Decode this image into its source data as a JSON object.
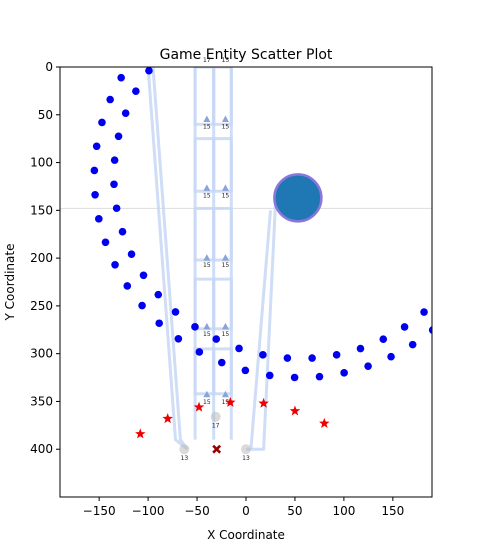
{
  "chart_data": {
    "type": "scatter",
    "title": "Game Entity Scatter Plot",
    "xlabel": "X Coordinate",
    "ylabel": "Y Coordinate",
    "xlim": [
      -190,
      190
    ],
    "ylim": [
      450,
      0
    ],
    "y_inverted": true,
    "x_ticks": [
      -150,
      -100,
      -50,
      0,
      50,
      100,
      150
    ],
    "y_ticks": [
      0,
      50,
      100,
      150,
      200,
      250,
      300,
      350,
      400
    ],
    "grid": false,
    "reference_line_y": 148,
    "colors": {
      "blue_dot": "#0000ee",
      "large_circle_fill": "#1f77b4",
      "large_circle_edge": "#8877dd",
      "star": "#ee0000",
      "cross": "#990000",
      "path": "#c7d7f5",
      "triangle": "#8aa4d8",
      "reference_line": "#dddddd"
    },
    "outer_arc": {
      "center": [
        55,
        115
      ],
      "radius": 210,
      "angle_start_deg": -60,
      "angle_end_deg": 35,
      "count": 42
    },
    "inner_arc": {
      "center": [
        55,
        115
      ],
      "radius": 190,
      "angle_start_deg": -60,
      "angle_end_deg": 35,
      "count": 38
    },
    "large_circle": {
      "x": 53,
      "y": 137,
      "radius_data": 24
    },
    "stars": [
      {
        "x": -108,
        "y": 384
      },
      {
        "x": -80,
        "y": 368
      },
      {
        "x": -48,
        "y": 356
      },
      {
        "x": -16,
        "y": 351
      },
      {
        "x": 18,
        "y": 352
      },
      {
        "x": 50,
        "y": 360
      },
      {
        "x": 80,
        "y": 373
      }
    ],
    "cross": {
      "x": -30,
      "y": 400
    },
    "paths": [
      {
        "points": [
          [
            -100,
            0
          ],
          [
            -72,
            390
          ],
          [
            -60,
            400
          ]
        ]
      },
      {
        "points": [
          [
            -95,
            0
          ],
          [
            -67,
            390
          ],
          [
            -60,
            400
          ]
        ]
      },
      {
        "points": [
          [
            -52,
            0
          ],
          [
            -52,
            390
          ]
        ]
      },
      {
        "points": [
          [
            -33,
            0
          ],
          [
            -33,
            390
          ]
        ]
      },
      {
        "points": [
          [
            -15,
            0
          ],
          [
            -15,
            390
          ]
        ]
      },
      {
        "points": [
          [
            0,
            400
          ],
          [
            18,
            400
          ],
          [
            30,
            145
          ],
          [
            45,
            145
          ]
        ]
      },
      {
        "points": [
          [
            5,
            400
          ],
          [
            25,
            150
          ]
        ]
      }
    ],
    "boxes": [
      {
        "x0": -52,
        "x1": -33,
        "y0": 0,
        "y1": 60
      },
      {
        "x0": -33,
        "x1": -15,
        "y0": 0,
        "y1": 60
      },
      {
        "x0": -52,
        "x1": -33,
        "y0": 75,
        "y1": 130
      },
      {
        "x0": -33,
        "x1": -15,
        "y0": 75,
        "y1": 130
      },
      {
        "x0": -52,
        "x1": -33,
        "y0": 148,
        "y1": 202
      },
      {
        "x0": -33,
        "x1": -15,
        "y0": 148,
        "y1": 202
      },
      {
        "x0": -52,
        "x1": -33,
        "y0": 222,
        "y1": 274
      },
      {
        "x0": -33,
        "x1": -15,
        "y0": 222,
        "y1": 274
      },
      {
        "x0": -52,
        "x1": -33,
        "y0": 295,
        "y1": 342
      },
      {
        "x0": -33,
        "x1": -15,
        "y0": 295,
        "y1": 342
      }
    ],
    "triangles": [
      {
        "x": -40,
        "y": 55,
        "label": "15"
      },
      {
        "x": -21,
        "y": 55,
        "label": "15"
      },
      {
        "x": -40,
        "y": 127,
        "label": "15"
      },
      {
        "x": -21,
        "y": 127,
        "label": "15"
      },
      {
        "x": -40,
        "y": 200,
        "label": "15"
      },
      {
        "x": -21,
        "y": 200,
        "label": "15"
      },
      {
        "x": -40,
        "y": 272,
        "label": "15"
      },
      {
        "x": -21,
        "y": 272,
        "label": "15"
      },
      {
        "x": -40,
        "y": 343,
        "label": "15"
      },
      {
        "x": -21,
        "y": 343,
        "label": "15"
      }
    ],
    "top_labels": [
      {
        "x": -40,
        "y": -8,
        "label": "17"
      },
      {
        "x": -21,
        "y": -8,
        "label": "15"
      }
    ],
    "ghost_circles": [
      {
        "x": -63,
        "y": 400,
        "label": "13"
      },
      {
        "x": -31,
        "y": 366,
        "label": "17"
      },
      {
        "x": 0,
        "y": 400,
        "label": "13"
      }
    ]
  }
}
